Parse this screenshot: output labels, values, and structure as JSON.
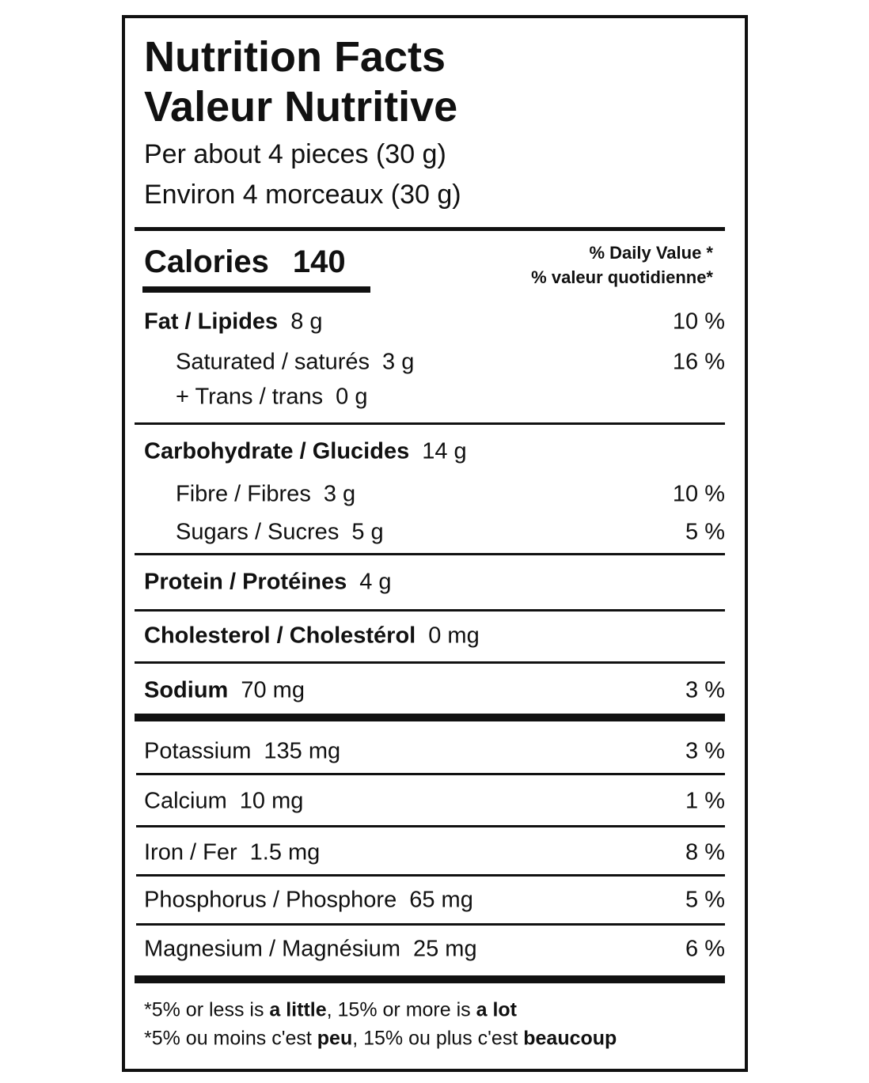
{
  "title": [
    "Nutrition Facts",
    "Valeur Nutritive"
  ],
  "serving": [
    "Per about 4 pieces (30 g)",
    "Environ 4 morceaux (30 g)"
  ],
  "calories": {
    "label": "Calories",
    "value": "140"
  },
  "daily_value_header": [
    "% Daily Value *",
    "% valeur quotidienne*"
  ],
  "rows": [
    {
      "name": "Fat / Lipides",
      "amount": "8 g",
      "dv": "10 %"
    },
    {
      "name": "Saturated / saturés",
      "amount": "3 g",
      "dv": "16 %"
    },
    {
      "name": "+ Trans / trans",
      "amount": "0 g"
    },
    {
      "name": "Carbohydrate / Glucides",
      "amount": "14 g"
    },
    {
      "name": "Fibre / Fibres",
      "amount": "3 g",
      "dv": "10 %"
    },
    {
      "name": "Sugars / Sucres",
      "amount": "5 g",
      "dv": "5 %"
    },
    {
      "name": "Protein / Protéines",
      "amount": "4 g"
    },
    {
      "name": "Cholesterol / Cholestérol",
      "amount": "0 mg"
    },
    {
      "name": "Sodium",
      "amount": "70 mg",
      "dv": "3 %"
    },
    {
      "name": "Potassium",
      "amount": "135 mg",
      "dv": "3 %"
    },
    {
      "name": "Calcium",
      "amount": "10 mg",
      "dv": "1 %"
    },
    {
      "name": "Iron / Fer",
      "amount": "1.5 mg",
      "dv": "8 %"
    },
    {
      "name": "Phosphorus / Phosphore",
      "amount": "65 mg",
      "dv": "5 %"
    },
    {
      "name": "Magnesium / Magnésium",
      "amount": "25 mg",
      "dv": "6 %"
    }
  ],
  "footnote": [
    [
      {
        "text": "*5% or less is ",
        "bold": false
      },
      {
        "text": "a little",
        "bold": true
      },
      {
        "text": ", 15% or more is ",
        "bold": false
      },
      {
        "text": "a lot",
        "bold": true
      }
    ],
    [
      {
        "text": "*5% ou moins c'est ",
        "bold": false
      },
      {
        "text": "peu",
        "bold": true
      },
      {
        "text": ", 15% ou plus c'est ",
        "bold": false
      },
      {
        "text": "beaucoup",
        "bold": true
      }
    ]
  ]
}
